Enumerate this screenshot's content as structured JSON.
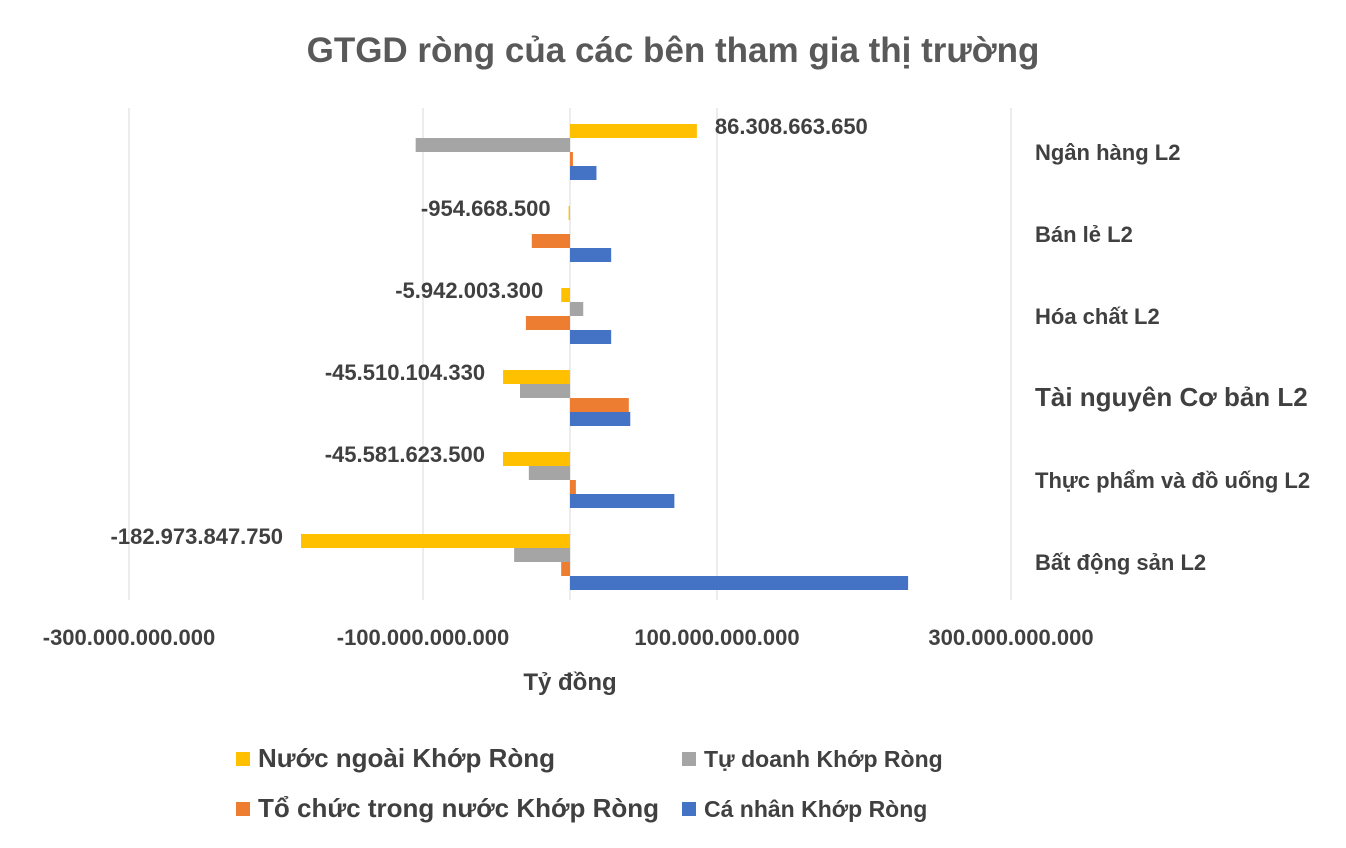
{
  "chart_data": {
    "type": "bar",
    "orientation": "horizontal",
    "title": "GTGD ròng của các bên tham gia thị trường",
    "xlabel": "Tỷ đồng",
    "ylabel": "",
    "xlim": [
      -300000000000,
      300000000000
    ],
    "xticks": [
      -300000000000,
      -100000000000,
      100000000000,
      300000000000
    ],
    "xtick_labels": [
      "-300.000.000.000",
      "-100.000.000.000",
      "100.000.000.000",
      "300.000.000.000"
    ],
    "grid": true,
    "legend_position": "bottom",
    "categories": [
      "Ngân hàng L2",
      "Bán lẻ L2",
      "Hóa chất L2",
      "Tài nguyên Cơ bản L2",
      "Thực phẩm và đồ uống L2",
      "Bất động sản L2"
    ],
    "series": [
      {
        "name": "Nước ngoài Khớp Ròng",
        "color": "#FFC000",
        "values": [
          86308663650,
          -954668500,
          -5942003300,
          -45510104330,
          -45581623500,
          -182973847750
        ],
        "data_labels": [
          "86.308.663.650",
          "-954.668.500",
          "-5.942.003.300",
          "-45.510.104.330",
          "-45.581.623.500",
          "-182.973.847.750"
        ]
      },
      {
        "name": "Tự doanh Khớp Ròng",
        "color": "#A5A5A5",
        "values": [
          -105000000000,
          0,
          9000000000,
          -34000000000,
          -28000000000,
          -38000000000
        ]
      },
      {
        "name": "Tổ chức trong nước Khớp Ròng",
        "color": "#ED7D31",
        "values": [
          2000000000,
          -26000000000,
          -30000000000,
          40000000000,
          4000000000,
          -6000000000
        ]
      },
      {
        "name": "Cá nhân Khớp Ròng",
        "color": "#4472C4",
        "values": [
          18000000000,
          28000000000,
          28000000000,
          41000000000,
          71000000000,
          230000000000
        ]
      }
    ]
  }
}
